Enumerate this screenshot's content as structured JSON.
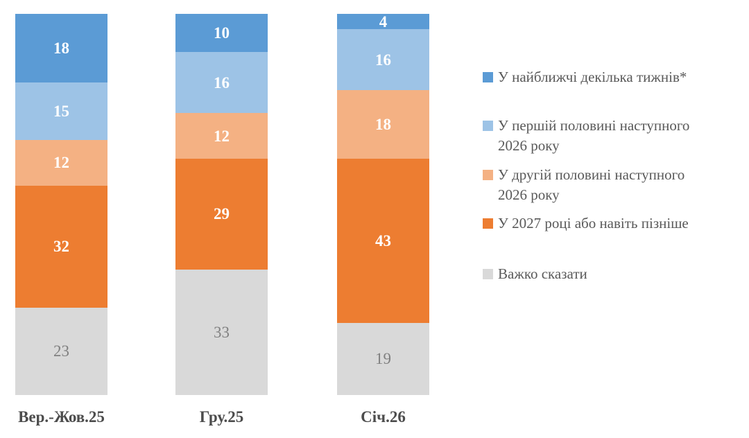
{
  "chart_data": {
    "type": "bar",
    "stacked": true,
    "orientation": "vertical",
    "title": "",
    "xlabel": "",
    "ylabel": "",
    "ylim": [
      0,
      100
    ],
    "grid": false,
    "legend_position": "right",
    "categories": [
      "Вер.-Жов.25",
      "Гру.25",
      "Січ.26"
    ],
    "series": [
      {
        "name": "У найближчі декілька тижнів*",
        "color": "#5B9BD5",
        "values": [
          18,
          10,
          4
        ],
        "value_label_color": "#FFFFFF",
        "value_label_bold": true
      },
      {
        "name": "У першій половині наступного 2026 року",
        "color": "#9DC3E6",
        "values": [
          15,
          16,
          16
        ],
        "value_label_color": "#FFFFFF",
        "value_label_bold": true
      },
      {
        "name": "У другій половині наступного 2026 року",
        "color": "#F4B183",
        "values": [
          12,
          12,
          18
        ],
        "value_label_color": "#FFFFFF",
        "value_label_bold": true
      },
      {
        "name": "У 2027 році або навіть пізніше",
        "color": "#ED7D31",
        "values": [
          32,
          29,
          43
        ],
        "value_label_color": "#FFFFFF",
        "value_label_bold": true
      },
      {
        "name": "Важко сказати",
        "color": "#D9D9D9",
        "values": [
          23,
          33,
          19
        ],
        "value_label_color": "#808080",
        "value_label_bold": false
      }
    ],
    "totals": [
      100,
      100,
      100
    ],
    "legend": [
      {
        "color": "#5B9BD5",
        "lines": [
          "У найближчі декілька тижнів*"
        ]
      },
      {
        "color": "#9DC3E6",
        "lines": [
          "У першій половині наступного",
          "2026 року"
        ]
      },
      {
        "color": "#F4B183",
        "lines": [
          "У другій половині наступного",
          "2026 року"
        ]
      },
      {
        "color": "#ED7D31",
        "lines": [
          "У 2027 році або навіть пізніше"
        ]
      },
      {
        "color": "#D9D9D9",
        "lines": [
          "Важко сказати"
        ]
      }
    ],
    "text_colors": {
      "axis_label": "#4C4C4C",
      "legend_text": "#595959",
      "value_on_color": "#FFFFFF",
      "value_on_gray": "#808080"
    }
  }
}
